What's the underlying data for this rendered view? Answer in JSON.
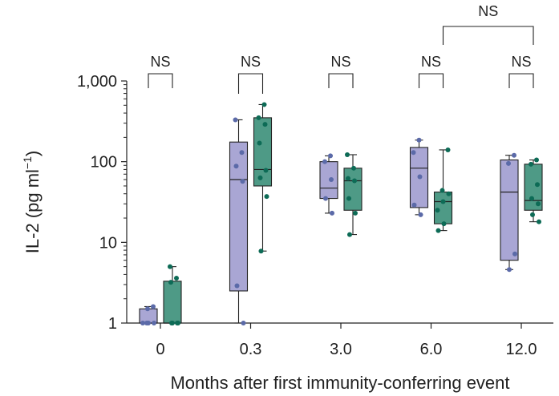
{
  "chart_data": {
    "type": "box",
    "title": "",
    "xlabel": "Months after first immunity-conferring event",
    "ylabel_main": "IL-2 (pg ml",
    "ylabel_sup": "−1",
    "ylabel_close": ")",
    "yscale": "log",
    "ylim": [
      1,
      1000
    ],
    "yticks": [
      1,
      10,
      100,
      1000
    ],
    "ytick_labels": [
      "1",
      "10",
      "100",
      "1,000"
    ],
    "categories": [
      "0",
      "0.3",
      "3.0",
      "6.0",
      "12.0"
    ],
    "series": [
      {
        "name": "group-purple",
        "fill": "#a9a6d4",
        "dot": "#5b6aa8",
        "boxes": [
          {
            "min": 1.0,
            "q1": 1.0,
            "median": 1.0,
            "q3": 1.5,
            "max": 1.6,
            "points": [
              1.0,
              1.0,
              1.0,
              1.5,
              1.6,
              1.0
            ]
          },
          {
            "min": 1.0,
            "q1": 2.5,
            "median": 60,
            "q3": 175,
            "max": 330,
            "points": [
              1.0,
              2.9,
              57,
              88,
              130,
              330
            ]
          },
          {
            "min": 23,
            "q1": 35,
            "median": 47,
            "q3": 100,
            "max": 118,
            "points": [
              23,
              35,
              60,
              100,
              118
            ]
          },
          {
            "min": 22,
            "q1": 27,
            "median": 83,
            "q3": 150,
            "max": 185,
            "points": [
              22,
              29,
              65,
              130,
              185
            ]
          },
          {
            "min": 4.6,
            "q1": 6.0,
            "median": 42,
            "q3": 105,
            "max": 120,
            "points": [
              4.6,
              7.2,
              95,
              120
            ]
          }
        ]
      },
      {
        "name": "group-green",
        "fill": "#4e9a86",
        "dot": "#0d6b56",
        "boxes": [
          {
            "min": 1.0,
            "q1": 1.0,
            "median": 1.0,
            "q3": 3.3,
            "max": 5.0,
            "points": [
              1.0,
              1.0,
              1.0,
              1.0,
              3.2,
              3.6,
              5.0
            ]
          },
          {
            "min": 7.8,
            "q1": 50,
            "median": 80,
            "q3": 350,
            "max": 510,
            "points": [
              7.8,
              37,
              63,
              78,
              170,
              290,
              350,
              510
            ]
          },
          {
            "min": 12.5,
            "q1": 25,
            "median": 58,
            "q3": 83,
            "max": 122,
            "points": [
              12.5,
              23,
              35,
              58,
              62,
              83,
              122
            ]
          },
          {
            "min": 14,
            "q1": 17,
            "median": 32,
            "q3": 42,
            "max": 140,
            "points": [
              14,
              17,
              25,
              32,
              40,
              44,
              140
            ]
          },
          {
            "min": 18,
            "q1": 25,
            "median": 33,
            "q3": 93,
            "max": 105,
            "points": [
              18,
              22,
              30,
              35,
              52,
              93,
              105
            ]
          }
        ]
      }
    ],
    "comparisons": [
      {
        "label": "NS",
        "category": "0",
        "type": "pair",
        "level": 1
      },
      {
        "label": "NS",
        "category": "0.3",
        "type": "pair",
        "level": 1
      },
      {
        "label": "NS",
        "category": "3.0",
        "type": "pair",
        "level": 1
      },
      {
        "label": "NS",
        "category": "6.0",
        "type": "pair",
        "level": 1
      },
      {
        "label": "NS",
        "category": "12.0",
        "type": "pair",
        "level": 1
      },
      {
        "label": "NS",
        "from": "6.0",
        "to": "12.0",
        "type": "between-categories",
        "level": 2
      }
    ]
  }
}
